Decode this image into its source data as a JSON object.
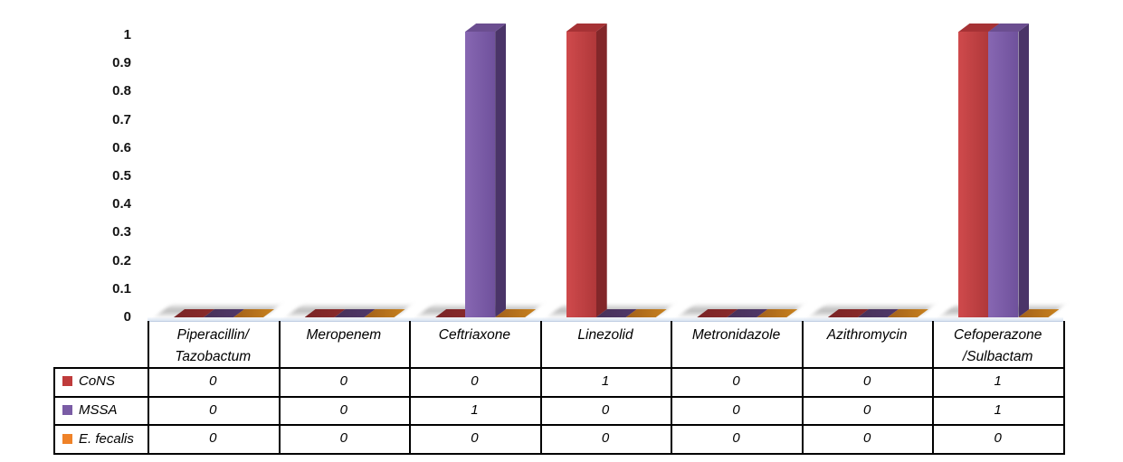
{
  "chart_data": {
    "type": "bar",
    "variant": "3d-clustered-column",
    "title": "",
    "xlabel": "",
    "ylabel": "",
    "gridlines": false,
    "legend_position": "table-left",
    "y_axis": {
      "min": 0,
      "max": 1,
      "ticks": [
        "1",
        "0.9",
        "0.8",
        "0.7",
        "0.6",
        "0.5",
        "0.4",
        "0.3",
        "0.2",
        "0.1",
        "0"
      ]
    },
    "categories": [
      {
        "label_lines": [
          "Piperacillin/",
          "Tazobactum"
        ]
      },
      {
        "label_lines": [
          "Meropenem"
        ]
      },
      {
        "label_lines": [
          "Ceftriaxone"
        ]
      },
      {
        "label_lines": [
          "Linezolid"
        ]
      },
      {
        "label_lines": [
          "Metronidazole"
        ]
      },
      {
        "label_lines": [
          "Azithromycin"
        ]
      },
      {
        "label_lines": [
          "Cefoperazone",
          "/Sulbactam"
        ]
      }
    ],
    "series": [
      {
        "name": "CoNS",
        "values": [
          0,
          0,
          0,
          1,
          0,
          0,
          1
        ],
        "colors": {
          "front_light": "#cf4a4c",
          "front": "#b0383a",
          "side": "#82272a",
          "top": "#a63235",
          "zero_slab": "#7a2527",
          "zero_slab2": "#8a2b2c",
          "legend": "#bf3b3b"
        }
      },
      {
        "name": "MSSA",
        "values": [
          0,
          0,
          1,
          0,
          0,
          0,
          1
        ],
        "colors": {
          "front_light": "#8767b2",
          "front": "#6f519c",
          "side": "#4a3468",
          "top": "#6b4e90",
          "zero_slab": "#473159",
          "zero_slab2": "#51386a",
          "legend": "#7a5ca5"
        }
      },
      {
        "name": "E. fecalis",
        "values": [
          0,
          0,
          0,
          0,
          0,
          0,
          0
        ],
        "colors": {
          "front_light": "#f08d39",
          "front": "#e8802c",
          "side": "#9a5a14",
          "top": "#b06a1e",
          "zero_slab": "#a2601a",
          "zero_slab2": "#c8821f",
          "legend": "#ef8228"
        }
      }
    ]
  }
}
